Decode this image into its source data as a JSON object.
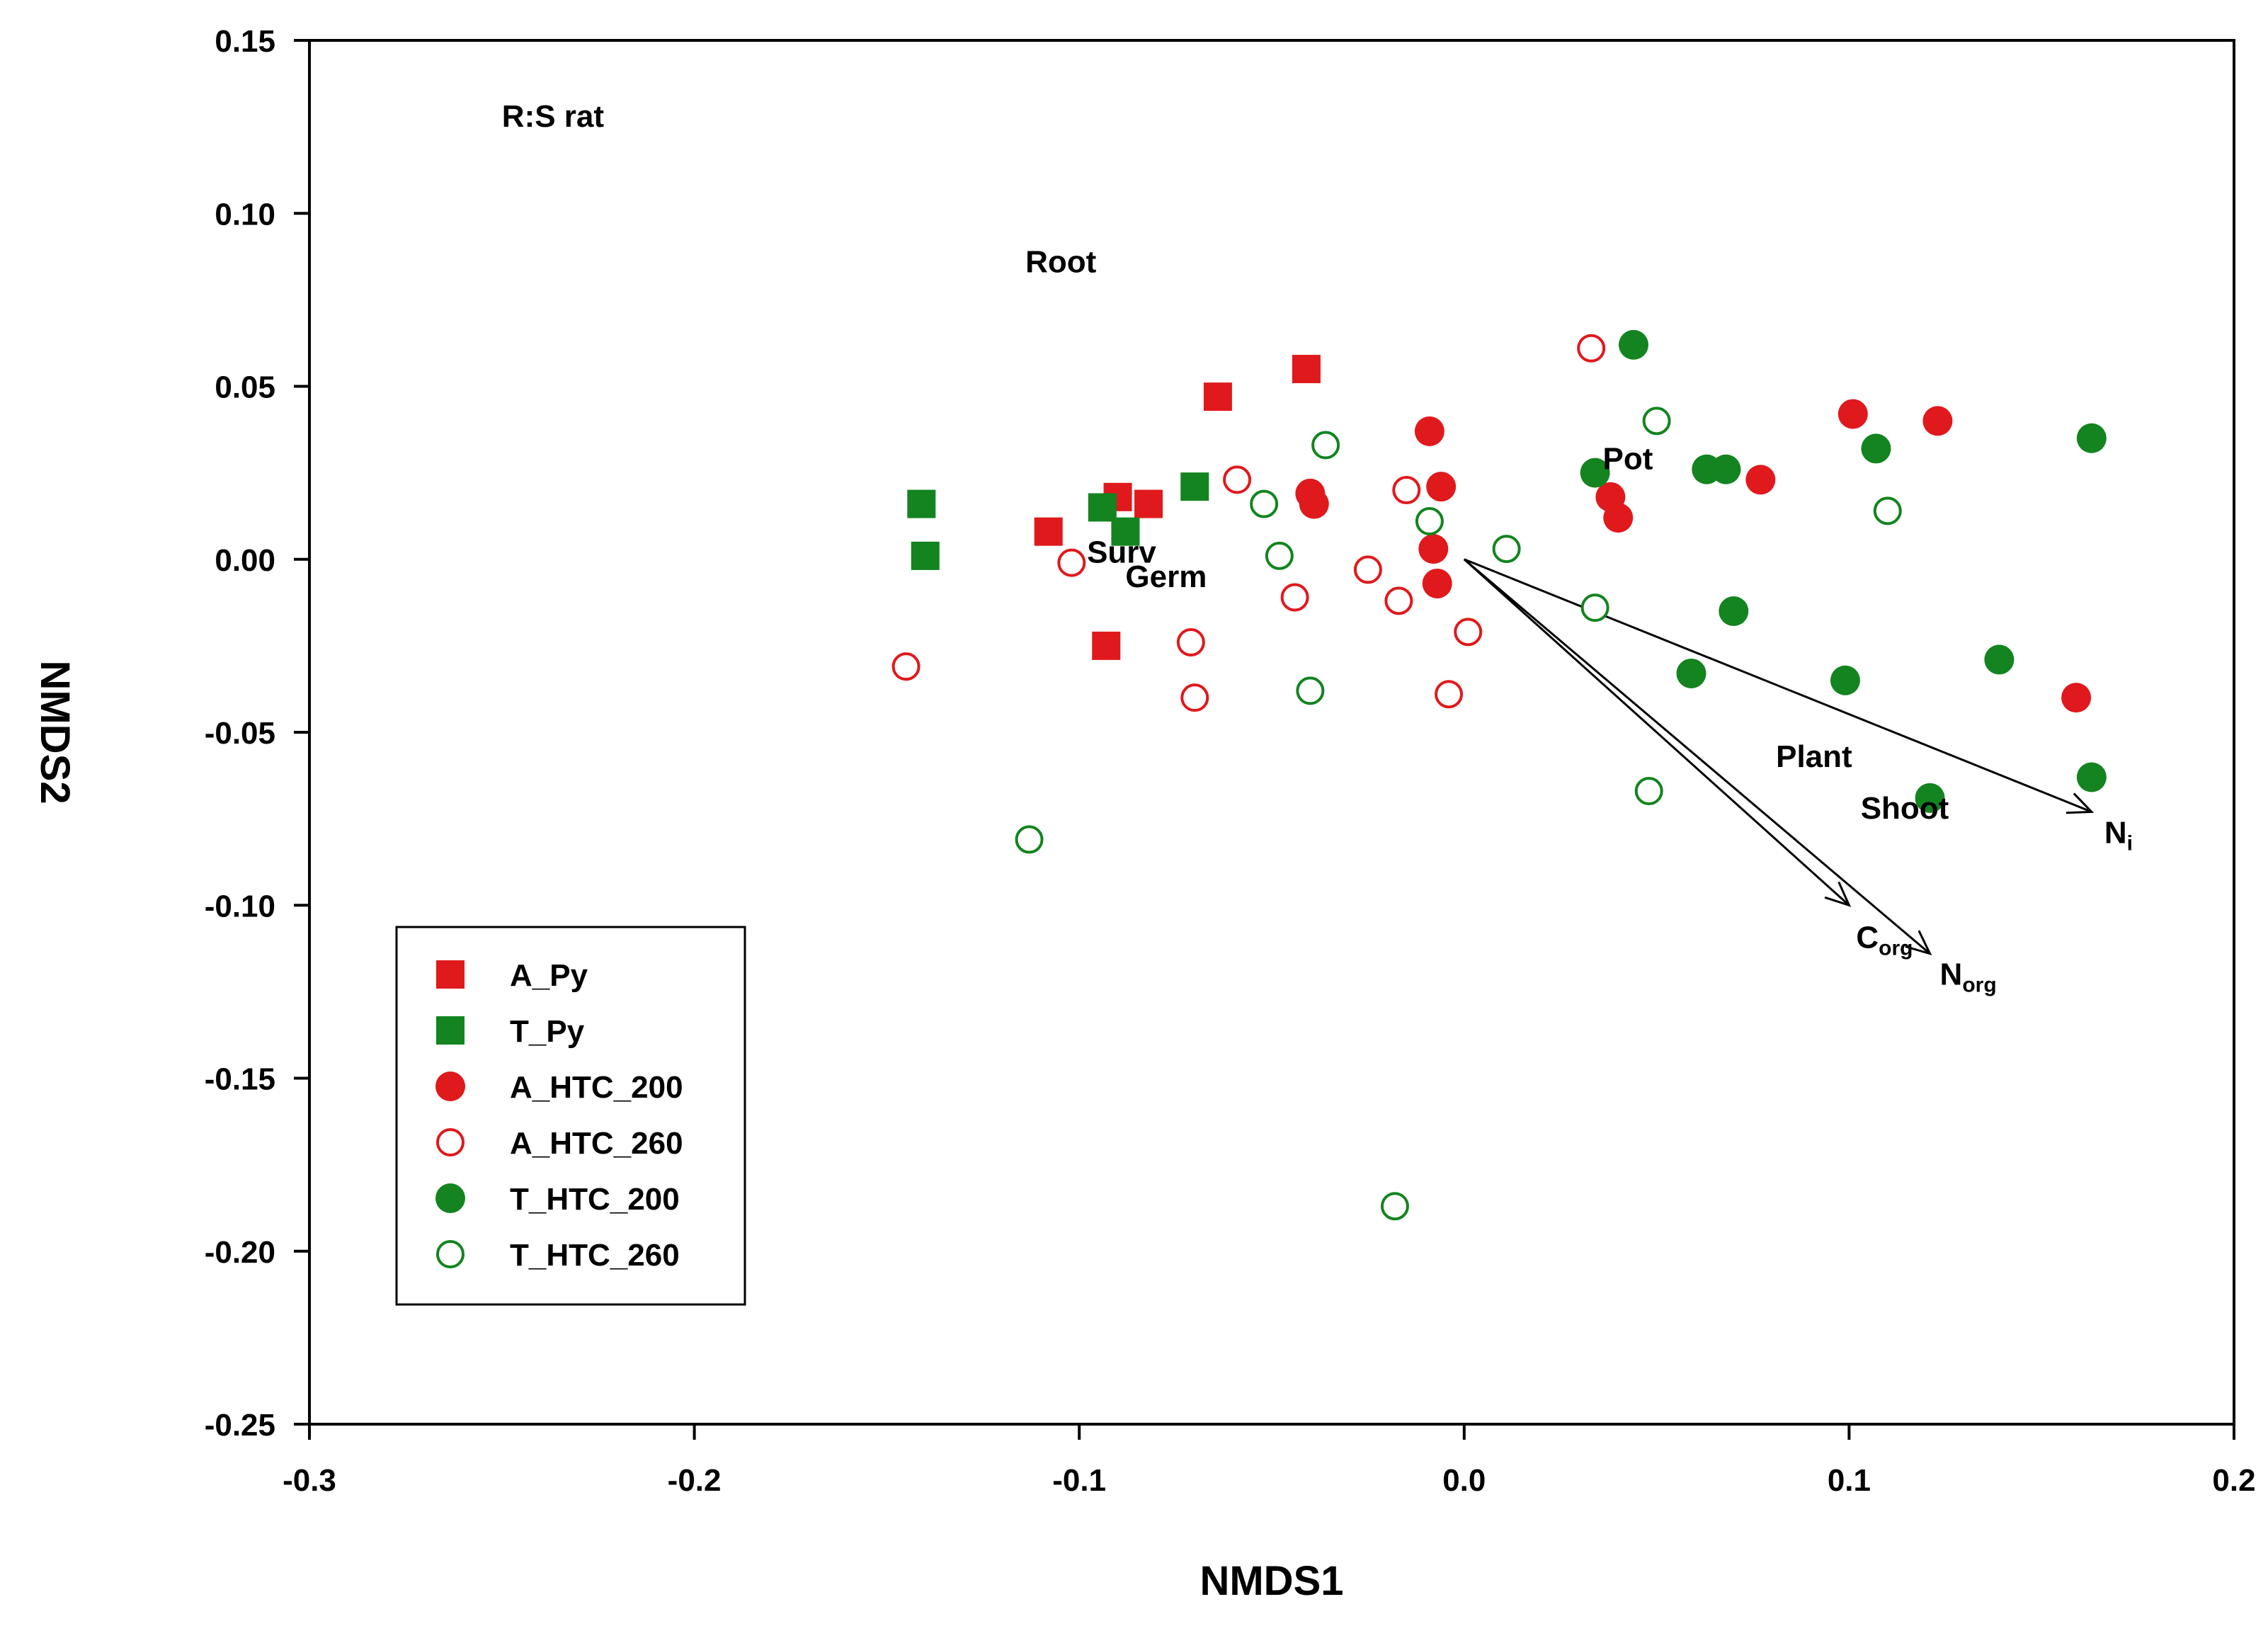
{
  "chart_data": {
    "type": "scatter",
    "title": "",
    "xlabel": "NMDS1",
    "ylabel": "NMDS2",
    "xlim": [
      -0.3,
      0.2
    ],
    "ylim": [
      -0.25,
      0.15
    ],
    "xticks": [
      -0.3,
      -0.2,
      -0.1,
      0.0,
      0.1,
      0.2
    ],
    "xtick_labels": [
      "-0.3",
      "-0.2",
      "-0.1",
      "0.0",
      "0.1",
      "0.2"
    ],
    "yticks": [
      0.15,
      0.1,
      0.05,
      0.0,
      -0.05,
      -0.1,
      -0.15,
      -0.2,
      -0.25
    ],
    "ytick_labels": [
      "0.15",
      "0.10",
      "0.05",
      "0.00",
      "-0.05",
      "-0.10",
      "-0.15",
      "-0.20",
      "-0.25"
    ],
    "grid": false,
    "legend_position": "bottom-left",
    "colors": {
      "red": "#e0191c",
      "green": "#13841f"
    },
    "series": [
      {
        "name": "A_Py",
        "marker": "square",
        "filled": true,
        "color": "#e0191c",
        "points": [
          [
            -0.041,
            0.055
          ],
          [
            -0.064,
            0.047
          ],
          [
            -0.108,
            0.008
          ],
          [
            -0.09,
            0.018
          ],
          [
            -0.082,
            0.016
          ],
          [
            -0.093,
            -0.025
          ]
        ]
      },
      {
        "name": "T_Py",
        "marker": "square",
        "filled": true,
        "color": "#13841f",
        "points": [
          [
            -0.141,
            0.016
          ],
          [
            -0.14,
            0.001
          ],
          [
            -0.094,
            0.015
          ],
          [
            -0.088,
            0.008
          ],
          [
            -0.07,
            0.021
          ]
        ]
      },
      {
        "name": "A_HTC_200",
        "marker": "circle",
        "filled": true,
        "color": "#e0191c",
        "points": [
          [
            -0.04,
            0.019
          ],
          [
            -0.039,
            0.016
          ],
          [
            -0.009,
            0.037
          ],
          [
            -0.006,
            0.021
          ],
          [
            -0.008,
            0.003
          ],
          [
            -0.007,
            -0.007
          ],
          [
            0.038,
            0.018
          ],
          [
            0.04,
            0.012
          ],
          [
            0.077,
            0.023
          ],
          [
            0.101,
            0.042
          ],
          [
            0.123,
            0.04
          ],
          [
            0.159,
            -0.04
          ]
        ]
      },
      {
        "name": "A_HTC_260",
        "marker": "circle",
        "filled": false,
        "color": "#e0191c",
        "points": [
          [
            -0.145,
            -0.031
          ],
          [
            -0.102,
            -0.001
          ],
          [
            -0.071,
            -0.024
          ],
          [
            -0.07,
            -0.04
          ],
          [
            -0.059,
            0.023
          ],
          [
            -0.044,
            -0.011
          ],
          [
            -0.025,
            -0.003
          ],
          [
            -0.017,
            -0.012
          ],
          [
            -0.015,
            0.02
          ],
          [
            -0.004,
            -0.039
          ],
          [
            0.001,
            -0.021
          ],
          [
            0.033,
            0.061
          ]
        ]
      },
      {
        "name": "T_HTC_200",
        "marker": "circle",
        "filled": true,
        "color": "#13841f",
        "points": [
          [
            0.044,
            0.062
          ],
          [
            0.034,
            0.025
          ],
          [
            0.063,
            0.026
          ],
          [
            0.068,
            0.026
          ],
          [
            0.07,
            -0.015
          ],
          [
            0.059,
            -0.033
          ],
          [
            0.099,
            -0.035
          ],
          [
            0.107,
            0.032
          ],
          [
            0.121,
            -0.069
          ],
          [
            0.139,
            -0.029
          ],
          [
            0.163,
            0.035
          ],
          [
            0.163,
            -0.063
          ]
        ]
      },
      {
        "name": "T_HTC_260",
        "marker": "circle",
        "filled": false,
        "color": "#13841f",
        "points": [
          [
            -0.113,
            -0.081
          ],
          [
            -0.052,
            0.016
          ],
          [
            -0.048,
            0.001
          ],
          [
            -0.04,
            -0.038
          ],
          [
            -0.036,
            0.033
          ],
          [
            -0.009,
            0.011
          ],
          [
            0.011,
            0.003
          ],
          [
            0.034,
            -0.014
          ],
          [
            0.05,
            0.04
          ],
          [
            0.048,
            -0.067
          ],
          [
            0.11,
            0.014
          ],
          [
            -0.018,
            -0.187
          ]
        ]
      }
    ],
    "vectors": [
      {
        "name": "Ni",
        "base": "N",
        "subscript": "i",
        "from": [
          0.0,
          0.0
        ],
        "to": [
          0.163,
          -0.073
        ]
      },
      {
        "name": "Corg",
        "base": "C",
        "subscript": "org",
        "from": [
          0.0,
          0.0
        ],
        "to": [
          0.1,
          -0.1
        ]
      },
      {
        "name": "Norg",
        "base": "N",
        "subscript": "org",
        "from": [
          0.0,
          0.0
        ],
        "to": [
          0.121,
          -0.114
        ]
      }
    ],
    "annotations": [
      {
        "text": "R:S rat",
        "x": -0.25,
        "y": 0.125
      },
      {
        "text": "Root",
        "x": -0.114,
        "y": 0.083
      },
      {
        "text": "Pot",
        "x": 0.036,
        "y": 0.026
      },
      {
        "text": "Surv",
        "x": -0.098,
        "y": -0.001
      },
      {
        "text": "Germ",
        "x": -0.088,
        "y": -0.008
      },
      {
        "text": "Plant",
        "x": 0.081,
        "y": -0.06
      },
      {
        "text": "Shoot",
        "x": 0.103,
        "y": -0.075
      }
    ]
  }
}
